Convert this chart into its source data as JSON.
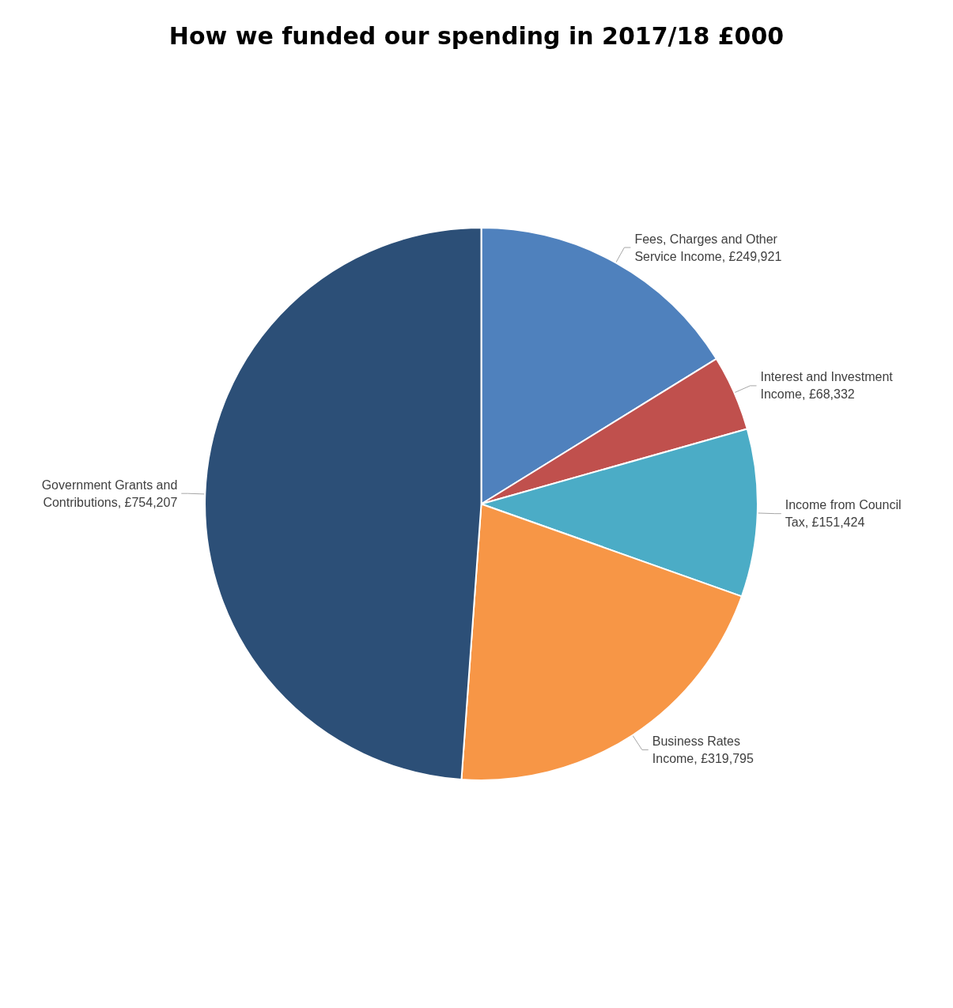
{
  "chart_data": {
    "type": "pie",
    "title": "How we funded our spending in 2017/18 £000",
    "categories": [
      "Fees, Charges and Other Service Income",
      "Interest and Investment Income",
      "Income from Council Tax",
      "Business Rates Income",
      "Government Grants and Contributions"
    ],
    "values": [
      249921,
      68332,
      151424,
      319795,
      754207
    ],
    "value_labels": [
      "£249,921",
      "£68,332",
      "£151,424",
      "£319,795",
      "£754,207"
    ],
    "colors": [
      "#4f81bd",
      "#c0504d",
      "#4bacc6",
      "#f79646",
      "#2c4f77"
    ],
    "legend": false
  }
}
